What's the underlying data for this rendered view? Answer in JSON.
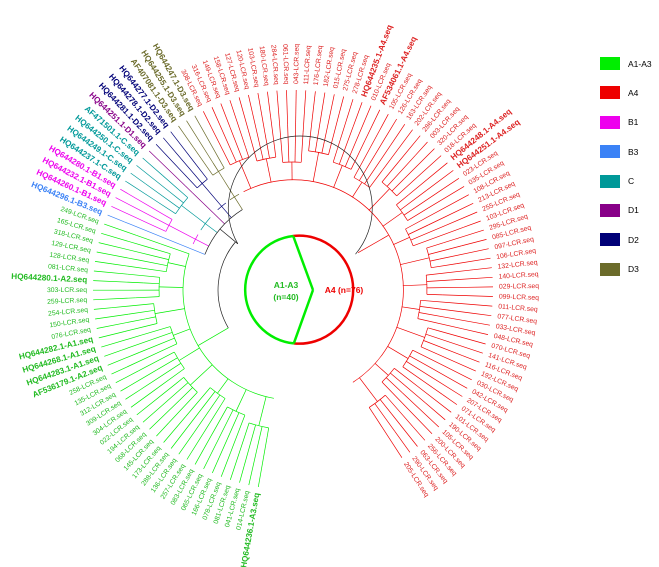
{
  "legend": [
    {
      "label": "A1-A3",
      "color": "#00ee00"
    },
    {
      "label": "A4",
      "color": "#ee0000"
    },
    {
      "label": "B1",
      "color": "#ee00ee"
    },
    {
      "label": "B3",
      "color": "#3b82f6"
    },
    {
      "label": "C",
      "color": "#009999"
    },
    {
      "label": "D1",
      "color": "#880088"
    },
    {
      "label": "D2",
      "color": "#000077"
    },
    {
      "label": "D3",
      "color": "#6b6b2a"
    }
  ],
  "center": {
    "green_label": "A1-A3",
    "green_count": "(n=40)",
    "red_label": "A4 (n=76)"
  },
  "leaves": [
    {
      "label": "HQ644236.1-A3.seq",
      "group": "A1-A3",
      "bold": true
    },
    {
      "label": "014-LCR.seq",
      "group": "A1-A3"
    },
    {
      "label": "041-LCR.seq",
      "group": "A1-A3"
    },
    {
      "label": "081-LCR.seq",
      "group": "A1-A3"
    },
    {
      "label": "078-LCR.seq",
      "group": "A1-A3"
    },
    {
      "label": "166-LCR.seq",
      "group": "A1-A3"
    },
    {
      "label": "065-LCR.seq",
      "group": "A1-A3"
    },
    {
      "label": "083-LCR.seq",
      "group": "A1-A3"
    },
    {
      "label": "257-LCR.seq",
      "group": "A1-A3"
    },
    {
      "label": "136-LCR.seq",
      "group": "A1-A3"
    },
    {
      "label": "288-LCR.seq",
      "group": "A1-A3"
    },
    {
      "label": "173-LCR.seq",
      "group": "A1-A3"
    },
    {
      "label": "145-LCR.seq",
      "group": "A1-A3"
    },
    {
      "label": "068-LCR.seq",
      "group": "A1-A3"
    },
    {
      "label": "194-LCR.seq",
      "group": "A1-A3"
    },
    {
      "label": "022-LCR.seq",
      "group": "A1-A3"
    },
    {
      "label": "304-LCR.seq",
      "group": "A1-A3"
    },
    {
      "label": "309-LCR.seq",
      "group": "A1-A3"
    },
    {
      "label": "312-LCR.seq",
      "group": "A1-A3"
    },
    {
      "label": "135-LCR.seq",
      "group": "A1-A3"
    },
    {
      "label": "258-LCR.seq",
      "group": "A1-A3"
    },
    {
      "label": "AF536179.1-A2.seq",
      "group": "A1-A3",
      "bold": true
    },
    {
      "label": "HQ644283.1-A1.seq",
      "group": "A1-A3",
      "bold": true
    },
    {
      "label": "HQ644268.1-A1.seq",
      "group": "A1-A3",
      "bold": true
    },
    {
      "label": "HQ644282.1-A1.seq",
      "group": "A1-A3",
      "bold": true
    },
    {
      "label": "076-LCR.seq",
      "group": "A1-A3"
    },
    {
      "label": "150-LCR.seq",
      "group": "A1-A3"
    },
    {
      "label": "254-LCR.seq",
      "group": "A1-A3"
    },
    {
      "label": "259-LCR.seq",
      "group": "A1-A3"
    },
    {
      "label": "303-LCR.seq",
      "group": "A1-A3"
    },
    {
      "label": "HQ644280.1-A2.seq",
      "group": "A1-A3",
      "bold": true
    },
    {
      "label": "081-LCR.seq",
      "group": "A1-A3"
    },
    {
      "label": "128-LCR.seq",
      "group": "A1-A3"
    },
    {
      "label": "129-LCR.seq",
      "group": "A1-A3"
    },
    {
      "label": "318-LCR.seq",
      "group": "A1-A3"
    },
    {
      "label": "165-LCR.seq",
      "group": "A1-A3"
    },
    {
      "label": "249-LCR.seq",
      "group": "A1-A3"
    },
    {
      "label": "HQ644296.1-B3.seq",
      "group": "B3",
      "bold": true
    },
    {
      "label": "HQ644260.1-B1.seq",
      "group": "B1",
      "bold": true
    },
    {
      "label": "HQ644232.1-B1.seq",
      "group": "B1",
      "bold": true
    },
    {
      "label": "HQ644280.1-B1.seq",
      "group": "B1",
      "bold": true
    },
    {
      "label": "HQ644237.1-C.seq",
      "group": "C",
      "bold": true
    },
    {
      "label": "HQ644249.1-C.seq",
      "group": "C",
      "bold": true
    },
    {
      "label": "HQ644250.1-C.seq",
      "group": "C",
      "bold": true
    },
    {
      "label": "AF471501.1-C.seq",
      "group": "C",
      "bold": true
    },
    {
      "label": "HQ644251.1-D1.seq",
      "group": "D1",
      "bold": true
    },
    {
      "label": "HQ644281.1-D2.seq",
      "group": "D2",
      "bold": true
    },
    {
      "label": "HQ644278.1-D2.seq",
      "group": "D2",
      "bold": true
    },
    {
      "label": "HQ644277.1-D2.seq",
      "group": "D2",
      "bold": true
    },
    {
      "label": "AF407081.1-D3.seq",
      "group": "D3",
      "bold": true
    },
    {
      "label": "HQ644255.1-D3.seq",
      "group": "D3",
      "bold": true
    },
    {
      "label": "HQ644247.1-D3.seq",
      "group": "D3",
      "bold": true
    },
    {
      "label": "308-LCR.seq",
      "group": "A4"
    },
    {
      "label": "316-LCR.seq",
      "group": "A4"
    },
    {
      "label": "149-LCR.seq",
      "group": "A4"
    },
    {
      "label": "158-LCR.seq",
      "group": "A4"
    },
    {
      "label": "127-LCR.seq",
      "group": "A4"
    },
    {
      "label": "120-LCR.seq",
      "group": "A4"
    },
    {
      "label": "103-LCR.seq",
      "group": "A4"
    },
    {
      "label": "180-LCR.seq",
      "group": "A4"
    },
    {
      "label": "284-LCR.seq",
      "group": "A4"
    },
    {
      "label": "061-LCR.seq",
      "group": "A4"
    },
    {
      "label": "043-LCR.seq",
      "group": "A4"
    },
    {
      "label": "111-LCR.seq",
      "group": "A4"
    },
    {
      "label": "176-LCR.seq",
      "group": "A4"
    },
    {
      "label": "182-LCR.seq",
      "group": "A4"
    },
    {
      "label": "015-LCR.seq",
      "group": "A4"
    },
    {
      "label": "275-LCR.seq",
      "group": "A4"
    },
    {
      "label": "278-LCR.seq",
      "group": "A4"
    },
    {
      "label": "HQ644235.1-A4.seq",
      "group": "A4",
      "bold": true
    },
    {
      "label": "010-LCR.seq",
      "group": "A4"
    },
    {
      "label": "AF534061.1-A4.seq",
      "group": "A4",
      "bold": true
    },
    {
      "label": "105-LCR.seq",
      "group": "A4"
    },
    {
      "label": "126-LCR.seq",
      "group": "A4"
    },
    {
      "label": "163-LCR.seq",
      "group": "A4"
    },
    {
      "label": "202-LCR.seq",
      "group": "A4"
    },
    {
      "label": "286-LCR.seq",
      "group": "A4"
    },
    {
      "label": "003-LCR.seq",
      "group": "A4"
    },
    {
      "label": "320-LCR.seq",
      "group": "A4"
    },
    {
      "label": "018-LCR.seq",
      "group": "A4"
    },
    {
      "label": "HQ644248.1-A4.seq",
      "group": "A4",
      "bold": true
    },
    {
      "label": "HQ644251.1-A4.seq",
      "group": "A4",
      "bold": true
    },
    {
      "label": "023-LCR.seq",
      "group": "A4"
    },
    {
      "label": "035-LCR.seq",
      "group": "A4"
    },
    {
      "label": "108-LCR.seq",
      "group": "A4"
    },
    {
      "label": "213-LCR.seq",
      "group": "A4"
    },
    {
      "label": "255-LCR.seq",
      "group": "A4"
    },
    {
      "label": "103-LCR.seq",
      "group": "A4"
    },
    {
      "label": "295-LCR.seq",
      "group": "A4"
    },
    {
      "label": "085-LCR.seq",
      "group": "A4"
    },
    {
      "label": "097-LCR.seq",
      "group": "A4"
    },
    {
      "label": "106-LCR.seq",
      "group": "A4"
    },
    {
      "label": "132-LCR.seq",
      "group": "A4"
    },
    {
      "label": "140-LCR.seq",
      "group": "A4"
    },
    {
      "label": "029-LCR.seq",
      "group": "A4"
    },
    {
      "label": "099-LCR.seq",
      "group": "A4"
    },
    {
      "label": "011-LCR.seq",
      "group": "A4"
    },
    {
      "label": "077-LCR.seq",
      "group": "A4"
    },
    {
      "label": "033-LCR.seq",
      "group": "A4"
    },
    {
      "label": "048-LCR.seq",
      "group": "A4"
    },
    {
      "label": "070-LCR.seq",
      "group": "A4"
    },
    {
      "label": "141-LCR.seq",
      "group": "A4"
    },
    {
      "label": "116-LCR.seq",
      "group": "A4"
    },
    {
      "label": "192-LCR.seq",
      "group": "A4"
    },
    {
      "label": "030-LCR.seq",
      "group": "A4"
    },
    {
      "label": "042-LCR.seq",
      "group": "A4"
    },
    {
      "label": "207-LCR.seq",
      "group": "A4"
    },
    {
      "label": "071-LCR.seq",
      "group": "A4"
    },
    {
      "label": "101-LCR.seq",
      "group": "A4"
    },
    {
      "label": "190-LCR.seq",
      "group": "A4"
    },
    {
      "label": "105-LCR.seq",
      "group": "A4"
    },
    {
      "label": "200-LCR.seq",
      "group": "A4"
    },
    {
      "label": "256-LCR.seq",
      "group": "A4"
    },
    {
      "label": "063-LCR.seq",
      "group": "A4"
    },
    {
      "label": "290-LCR.seq",
      "group": "A4"
    },
    {
      "label": "205-LCR.seq",
      "group": "A4"
    }
  ]
}
